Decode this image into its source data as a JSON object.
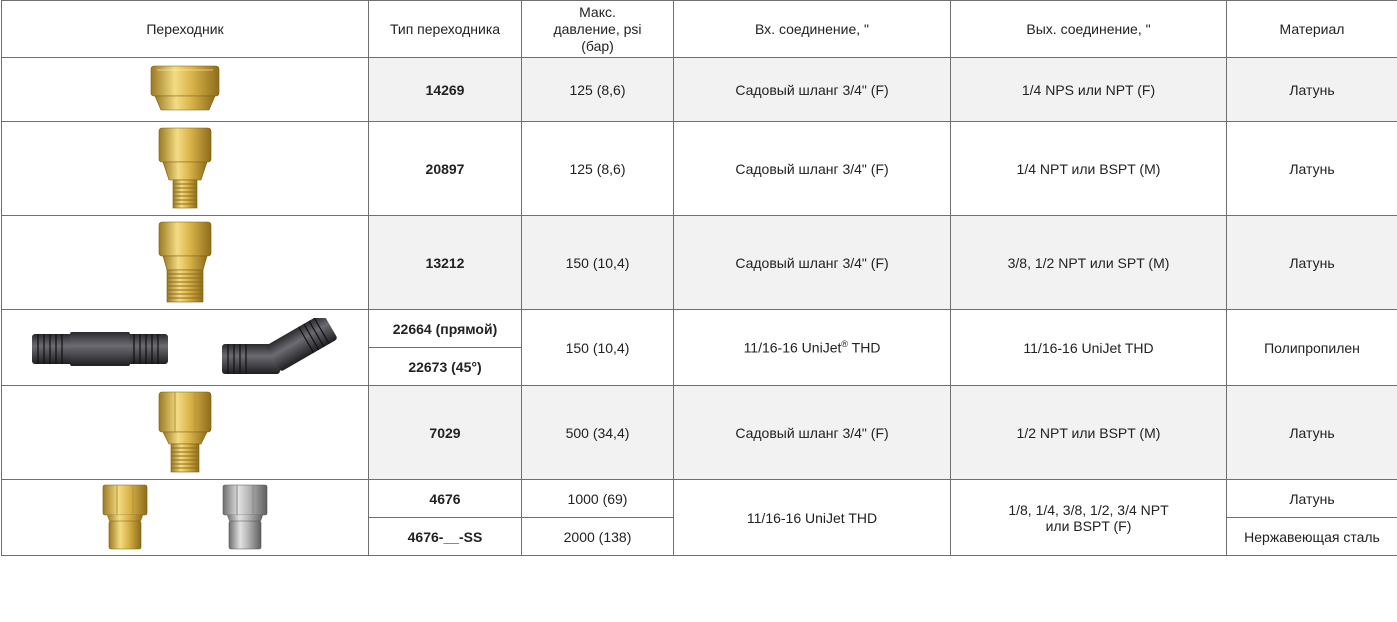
{
  "header": {
    "col1": "Переходник",
    "col2": "Тип переходника",
    "col3": "Макс. давление, psi (бар)",
    "col4": "Вх. соединение, \"",
    "col5": "Вых. соединение, \"",
    "col6": "Материал"
  },
  "rows": [
    {
      "type": "14269",
      "pressure": "125 (8,6)",
      "inlet": "Садовый шланг 3/4\" (F)",
      "outlet": "1/4 NPS или NPT (F)",
      "material": "Латунь"
    },
    {
      "type": "20897",
      "pressure": "125 (8,6)",
      "inlet": "Садовый шланг 3/4\" (F)",
      "outlet": "1/4 NPT или BSPT (M)",
      "material": "Латунь"
    },
    {
      "type": "13212",
      "pressure": "150 (10,4)",
      "inlet": "Садовый шланг 3/4\" (F)",
      "outlet": "3/8, 1/2 NPT или SPT (M)",
      "material": "Латунь"
    },
    {
      "type_a": "22664 (прямой)",
      "type_b": "22673 (45°)",
      "pressure": "150 (10,4)",
      "inlet": "11/16-16 UniJet",
      "inlet_reg": "®",
      "inlet_suffix": " THD",
      "outlet": "11/16-16 UniJet THD",
      "material": "Полипропилен"
    },
    {
      "type": "7029",
      "pressure": "500 (34,4)",
      "inlet": "Садовый шланг 3/4\" (F)",
      "outlet": "1/2 NPT или BSPT (M)",
      "material": "Латунь"
    },
    {
      "type_a": "4676",
      "type_b": "4676-__-SS",
      "pressure_a": "1000 (69)",
      "pressure_b": "2000 (138)",
      "inlet": "11/16-16 UniJet THD",
      "outlet": "1/8, 1/4, 3/8, 1/2, 3/4 NPT или BSPT (F)",
      "material_a": "Латунь",
      "material_b": "Нержавеющая сталь"
    }
  ]
}
